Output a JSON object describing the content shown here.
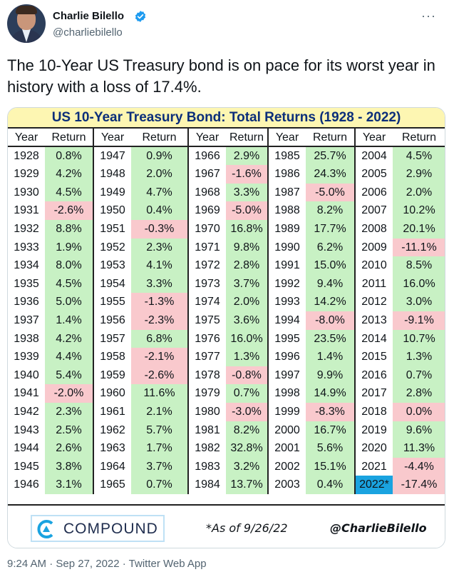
{
  "author": {
    "name": "Charlie Bilello",
    "handle": "@charliebilello"
  },
  "tweet": {
    "text": "The 10-Year US Treasury bond is on pace for its worst year in history with a loss of 17.4%."
  },
  "table": {
    "title": "US 10-Year Treasury Bond: Total Returns (1928 - 2022)",
    "header_year": "Year",
    "header_return": "Return",
    "columns": [
      [
        [
          "1928",
          "0.8%"
        ],
        [
          "1929",
          "4.2%"
        ],
        [
          "1930",
          "4.5%"
        ],
        [
          "1931",
          "-2.6%"
        ],
        [
          "1932",
          "8.8%"
        ],
        [
          "1933",
          "1.9%"
        ],
        [
          "1934",
          "8.0%"
        ],
        [
          "1935",
          "4.5%"
        ],
        [
          "1936",
          "5.0%"
        ],
        [
          "1937",
          "1.4%"
        ],
        [
          "1938",
          "4.2%"
        ],
        [
          "1939",
          "4.4%"
        ],
        [
          "1940",
          "5.4%"
        ],
        [
          "1941",
          "-2.0%"
        ],
        [
          "1942",
          "2.3%"
        ],
        [
          "1943",
          "2.5%"
        ],
        [
          "1944",
          "2.6%"
        ],
        [
          "1945",
          "3.8%"
        ],
        [
          "1946",
          "3.1%"
        ]
      ],
      [
        [
          "1947",
          "0.9%"
        ],
        [
          "1948",
          "2.0%"
        ],
        [
          "1949",
          "4.7%"
        ],
        [
          "1950",
          "0.4%"
        ],
        [
          "1951",
          "-0.3%"
        ],
        [
          "1952",
          "2.3%"
        ],
        [
          "1953",
          "4.1%"
        ],
        [
          "1954",
          "3.3%"
        ],
        [
          "1955",
          "-1.3%"
        ],
        [
          "1956",
          "-2.3%"
        ],
        [
          "1957",
          "6.8%"
        ],
        [
          "1958",
          "-2.1%"
        ],
        [
          "1959",
          "-2.6%"
        ],
        [
          "1960",
          "11.6%"
        ],
        [
          "1961",
          "2.1%"
        ],
        [
          "1962",
          "5.7%"
        ],
        [
          "1963",
          "1.7%"
        ],
        [
          "1964",
          "3.7%"
        ],
        [
          "1965",
          "0.7%"
        ]
      ],
      [
        [
          "1966",
          "2.9%"
        ],
        [
          "1967",
          "-1.6%"
        ],
        [
          "1968",
          "3.3%"
        ],
        [
          "1969",
          "-5.0%"
        ],
        [
          "1970",
          "16.8%"
        ],
        [
          "1971",
          "9.8%"
        ],
        [
          "1972",
          "2.8%"
        ],
        [
          "1973",
          "3.7%"
        ],
        [
          "1974",
          "2.0%"
        ],
        [
          "1975",
          "3.6%"
        ],
        [
          "1976",
          "16.0%"
        ],
        [
          "1977",
          "1.3%"
        ],
        [
          "1978",
          "-0.8%"
        ],
        [
          "1979",
          "0.7%"
        ],
        [
          "1980",
          "-3.0%"
        ],
        [
          "1981",
          "8.2%"
        ],
        [
          "1982",
          "32.8%"
        ],
        [
          "1983",
          "3.2%"
        ],
        [
          "1984",
          "13.7%"
        ]
      ],
      [
        [
          "1985",
          "25.7%"
        ],
        [
          "1986",
          "24.3%"
        ],
        [
          "1987",
          "-5.0%"
        ],
        [
          "1988",
          "8.2%"
        ],
        [
          "1989",
          "17.7%"
        ],
        [
          "1990",
          "6.2%"
        ],
        [
          "1991",
          "15.0%"
        ],
        [
          "1992",
          "9.4%"
        ],
        [
          "1993",
          "14.2%"
        ],
        [
          "1994",
          "-8.0%"
        ],
        [
          "1995",
          "23.5%"
        ],
        [
          "1996",
          "1.4%"
        ],
        [
          "1997",
          "9.9%"
        ],
        [
          "1998",
          "14.9%"
        ],
        [
          "1999",
          "-8.3%"
        ],
        [
          "2000",
          "16.7%"
        ],
        [
          "2001",
          "5.6%"
        ],
        [
          "2002",
          "15.1%"
        ],
        [
          "2003",
          "0.4%"
        ]
      ],
      [
        [
          "2004",
          "4.5%"
        ],
        [
          "2005",
          "2.9%"
        ],
        [
          "2006",
          "2.0%"
        ],
        [
          "2007",
          "10.2%"
        ],
        [
          "2008",
          "20.1%"
        ],
        [
          "2009",
          "-11.1%"
        ],
        [
          "2010",
          "8.5%"
        ],
        [
          "2011",
          "16.0%"
        ],
        [
          "2012",
          "3.0%"
        ],
        [
          "2013",
          "-9.1%"
        ],
        [
          "2014",
          "10.7%"
        ],
        [
          "2015",
          "1.3%"
        ],
        [
          "2016",
          "0.7%"
        ],
        [
          "2017",
          "2.8%"
        ],
        [
          "2018",
          "0.0%"
        ],
        [
          "2019",
          "9.6%"
        ],
        [
          "2020",
          "11.3%"
        ],
        [
          "2021",
          "-4.4%"
        ],
        [
          "2022*",
          "-17.4%"
        ]
      ]
    ],
    "highlight_year": "2022*",
    "colors": {
      "positive": "#c8f1c4",
      "negative": "#f9c9cd",
      "highlight": "#1aa3e0",
      "title_bg": "#fdf6b2",
      "title_text": "#0b2e7a"
    }
  },
  "footer": {
    "logo_text": "COMPOUND",
    "as_of": "*As of 9/26/22",
    "credit": "@CharlieBilello"
  },
  "meta": {
    "timestamp": "9:24 AM · Sep 27, 2022 · Twitter Web App"
  },
  "icons": {
    "verified": "verified-badge-icon",
    "more": "more-options-icon",
    "logo": "compound-logo-icon"
  }
}
